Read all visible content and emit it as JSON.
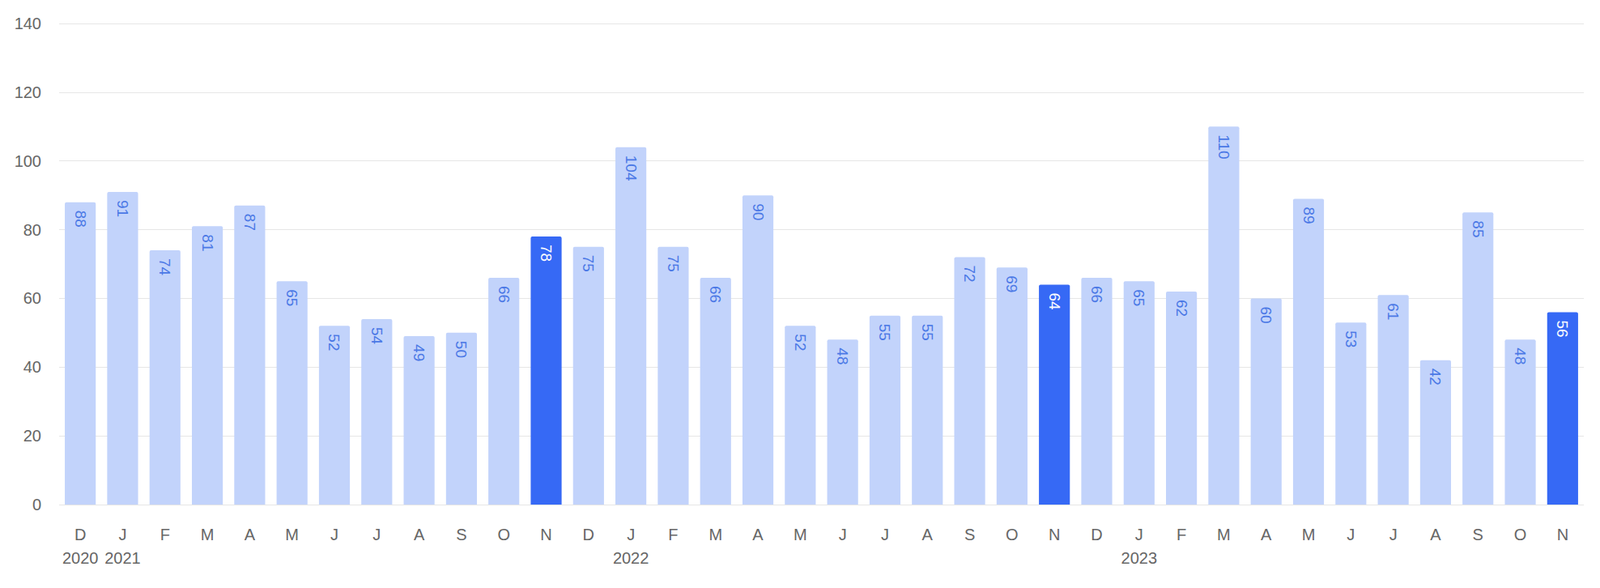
{
  "chart_data": {
    "type": "bar",
    "categories": [
      "D\n2020",
      "J\n2021",
      "F",
      "M",
      "A",
      "M",
      "J",
      "J",
      "A",
      "S",
      "O",
      "N",
      "D",
      "J\n2022",
      "F",
      "M",
      "A",
      "M",
      "J",
      "J",
      "A",
      "S",
      "O",
      "N",
      "D",
      "J\n2023",
      "F",
      "M",
      "A",
      "M",
      "J",
      "J",
      "A",
      "S",
      "O",
      "N"
    ],
    "values": [
      88,
      91,
      74,
      81,
      87,
      65,
      52,
      54,
      49,
      50,
      66,
      78,
      75,
      104,
      75,
      66,
      90,
      52,
      48,
      55,
      55,
      72,
      69,
      64,
      66,
      65,
      62,
      110,
      60,
      89,
      53,
      61,
      42,
      85,
      48,
      56
    ],
    "colors": [
      "#c2d3fb",
      "#c2d3fb",
      "#c2d3fb",
      "#c2d3fb",
      "#c2d3fb",
      "#c2d3fb",
      "#c2d3fb",
      "#c2d3fb",
      "#c2d3fb",
      "#c2d3fb",
      "#c2d3fb",
      "#3669f5",
      "#c2d3fb",
      "#c2d3fb",
      "#c2d3fb",
      "#c2d3fb",
      "#c2d3fb",
      "#c2d3fb",
      "#c2d3fb",
      "#c2d3fb",
      "#c2d3fb",
      "#c2d3fb",
      "#c2d3fb",
      "#3669f5",
      "#c2d3fb",
      "#c2d3fb",
      "#c2d3fb",
      "#c2d3fb",
      "#c2d3fb",
      "#c2d3fb",
      "#c2d3fb",
      "#c2d3fb",
      "#c2d3fb",
      "#c2d3fb",
      "#c2d3fb",
      "#3669f5"
    ],
    "ylim": [
      0,
      140
    ],
    "yticks": [
      0,
      20,
      40,
      60,
      80,
      100,
      120,
      140
    ],
    "grid": true,
    "data_labels": true
  }
}
